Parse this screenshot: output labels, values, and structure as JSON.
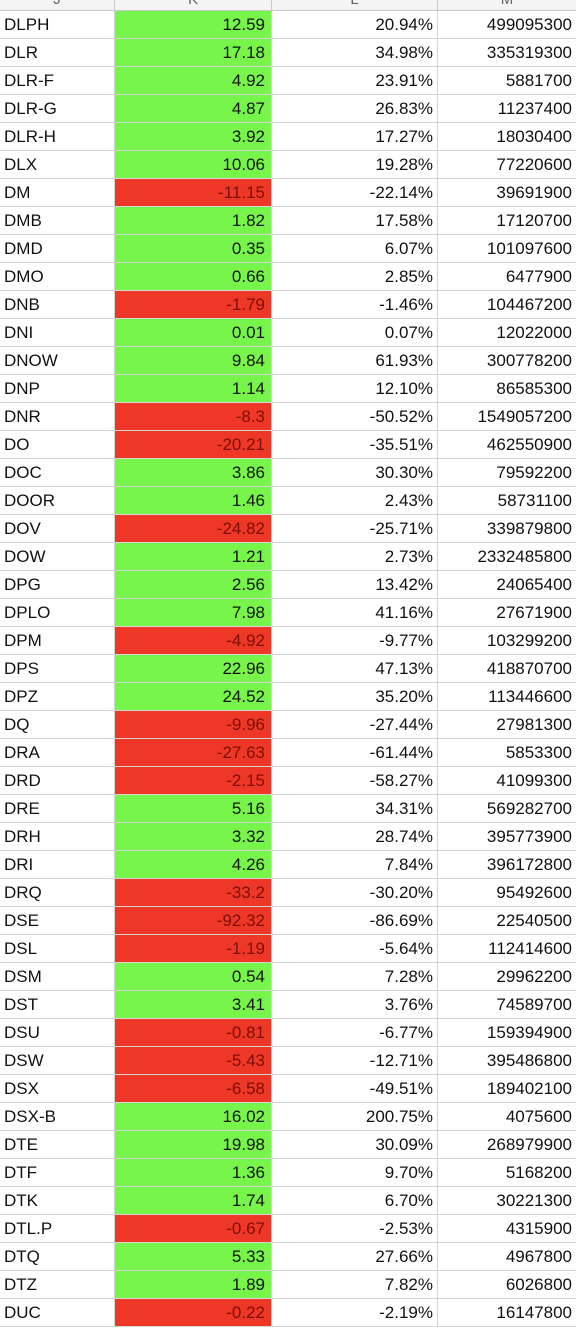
{
  "columns": [
    "J",
    "K",
    "L",
    "M"
  ],
  "colors": {
    "positive_fill": "#77f54a",
    "negative_fill": "#ee3726"
  },
  "rows": [
    {
      "ticker": "DLPH",
      "change": "12.59",
      "pct": "20.94%",
      "volume": "499095300",
      "sign": "pos"
    },
    {
      "ticker": "DLR",
      "change": "17.18",
      "pct": "34.98%",
      "volume": "335319300",
      "sign": "pos"
    },
    {
      "ticker": "DLR-F",
      "change": "4.92",
      "pct": "23.91%",
      "volume": "5881700",
      "sign": "pos"
    },
    {
      "ticker": "DLR-G",
      "change": "4.87",
      "pct": "26.83%",
      "volume": "11237400",
      "sign": "pos"
    },
    {
      "ticker": "DLR-H",
      "change": "3.92",
      "pct": "17.27%",
      "volume": "18030400",
      "sign": "pos"
    },
    {
      "ticker": "DLX",
      "change": "10.06",
      "pct": "19.28%",
      "volume": "77220600",
      "sign": "pos"
    },
    {
      "ticker": "DM",
      "change": "-11.15",
      "pct": "-22.14%",
      "volume": "39691900",
      "sign": "neg"
    },
    {
      "ticker": "DMB",
      "change": "1.82",
      "pct": "17.58%",
      "volume": "17120700",
      "sign": "pos"
    },
    {
      "ticker": "DMD",
      "change": "0.35",
      "pct": "6.07%",
      "volume": "101097600",
      "sign": "pos"
    },
    {
      "ticker": "DMO",
      "change": "0.66",
      "pct": "2.85%",
      "volume": "6477900",
      "sign": "pos"
    },
    {
      "ticker": "DNB",
      "change": "-1.79",
      "pct": "-1.46%",
      "volume": "104467200",
      "sign": "neg"
    },
    {
      "ticker": "DNI",
      "change": "0.01",
      "pct": "0.07%",
      "volume": "12022000",
      "sign": "pos"
    },
    {
      "ticker": "DNOW",
      "change": "9.84",
      "pct": "61.93%",
      "volume": "300778200",
      "sign": "pos"
    },
    {
      "ticker": "DNP",
      "change": "1.14",
      "pct": "12.10%",
      "volume": "86585300",
      "sign": "pos"
    },
    {
      "ticker": "DNR",
      "change": "-8.3",
      "pct": "-50.52%",
      "volume": "1549057200",
      "sign": "neg"
    },
    {
      "ticker": "DO",
      "change": "-20.21",
      "pct": "-35.51%",
      "volume": "462550900",
      "sign": "neg"
    },
    {
      "ticker": "DOC",
      "change": "3.86",
      "pct": "30.30%",
      "volume": "79592200",
      "sign": "pos"
    },
    {
      "ticker": "DOOR",
      "change": "1.46",
      "pct": "2.43%",
      "volume": "58731100",
      "sign": "pos"
    },
    {
      "ticker": "DOV",
      "change": "-24.82",
      "pct": "-25.71%",
      "volume": "339879800",
      "sign": "neg"
    },
    {
      "ticker": "DOW",
      "change": "1.21",
      "pct": "2.73%",
      "volume": "2332485800",
      "sign": "pos"
    },
    {
      "ticker": "DPG",
      "change": "2.56",
      "pct": "13.42%",
      "volume": "24065400",
      "sign": "pos"
    },
    {
      "ticker": "DPLO",
      "change": "7.98",
      "pct": "41.16%",
      "volume": "27671900",
      "sign": "pos"
    },
    {
      "ticker": "DPM",
      "change": "-4.92",
      "pct": "-9.77%",
      "volume": "103299200",
      "sign": "neg"
    },
    {
      "ticker": "DPS",
      "change": "22.96",
      "pct": "47.13%",
      "volume": "418870700",
      "sign": "pos"
    },
    {
      "ticker": "DPZ",
      "change": "24.52",
      "pct": "35.20%",
      "volume": "113446600",
      "sign": "pos"
    },
    {
      "ticker": "DQ",
      "change": "-9.96",
      "pct": "-27.44%",
      "volume": "27981300",
      "sign": "neg"
    },
    {
      "ticker": "DRA",
      "change": "-27.63",
      "pct": "-61.44%",
      "volume": "5853300",
      "sign": "neg"
    },
    {
      "ticker": "DRD",
      "change": "-2.15",
      "pct": "-58.27%",
      "volume": "41099300",
      "sign": "neg"
    },
    {
      "ticker": "DRE",
      "change": "5.16",
      "pct": "34.31%",
      "volume": "569282700",
      "sign": "pos"
    },
    {
      "ticker": "DRH",
      "change": "3.32",
      "pct": "28.74%",
      "volume": "395773900",
      "sign": "pos"
    },
    {
      "ticker": "DRI",
      "change": "4.26",
      "pct": "7.84%",
      "volume": "396172800",
      "sign": "pos"
    },
    {
      "ticker": "DRQ",
      "change": "-33.2",
      "pct": "-30.20%",
      "volume": "95492600",
      "sign": "neg"
    },
    {
      "ticker": "DSE",
      "change": "-92.32",
      "pct": "-86.69%",
      "volume": "22540500",
      "sign": "neg"
    },
    {
      "ticker": "DSL",
      "change": "-1.19",
      "pct": "-5.64%",
      "volume": "112414600",
      "sign": "neg"
    },
    {
      "ticker": "DSM",
      "change": "0.54",
      "pct": "7.28%",
      "volume": "29962200",
      "sign": "pos"
    },
    {
      "ticker": "DST",
      "change": "3.41",
      "pct": "3.76%",
      "volume": "74589700",
      "sign": "pos"
    },
    {
      "ticker": "DSU",
      "change": "-0.81",
      "pct": "-6.77%",
      "volume": "159394900",
      "sign": "neg"
    },
    {
      "ticker": "DSW",
      "change": "-5.43",
      "pct": "-12.71%",
      "volume": "395486800",
      "sign": "neg"
    },
    {
      "ticker": "DSX",
      "change": "-6.58",
      "pct": "-49.51%",
      "volume": "189402100",
      "sign": "neg"
    },
    {
      "ticker": "DSX-B",
      "change": "16.02",
      "pct": "200.75%",
      "volume": "4075600",
      "sign": "pos"
    },
    {
      "ticker": "DTE",
      "change": "19.98",
      "pct": "30.09%",
      "volume": "268979900",
      "sign": "pos"
    },
    {
      "ticker": "DTF",
      "change": "1.36",
      "pct": "9.70%",
      "volume": "5168200",
      "sign": "pos"
    },
    {
      "ticker": "DTK",
      "change": "1.74",
      "pct": "6.70%",
      "volume": "30221300",
      "sign": "pos"
    },
    {
      "ticker": "DTL.P",
      "change": "-0.67",
      "pct": "-2.53%",
      "volume": "4315900",
      "sign": "neg"
    },
    {
      "ticker": "DTQ",
      "change": "5.33",
      "pct": "27.66%",
      "volume": "4967800",
      "sign": "pos"
    },
    {
      "ticker": "DTZ",
      "change": "1.89",
      "pct": "7.82%",
      "volume": "6026800",
      "sign": "pos"
    },
    {
      "ticker": "DUC",
      "change": "-0.22",
      "pct": "-2.19%",
      "volume": "16147800",
      "sign": "neg"
    }
  ]
}
